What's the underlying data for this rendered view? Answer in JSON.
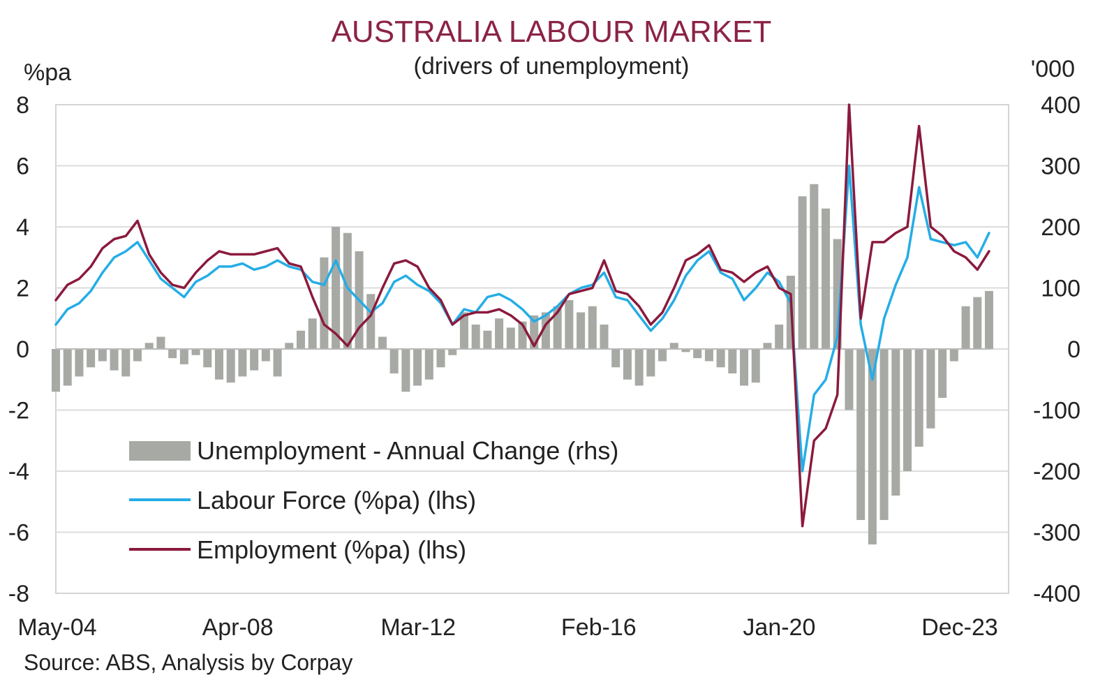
{
  "chart_data": {
    "type": "line",
    "title": "AUSTRALIA LABOUR MARKET",
    "subtitle": "(drivers of unemployment)",
    "y_left_label": "%pa",
    "y_right_label": "'000",
    "source": "Source: ABS, Analysis by Corpay",
    "y_left_range": [
      -8,
      8
    ],
    "y_right_range": [
      -400,
      400
    ],
    "y_left_ticks": [
      "8",
      "6",
      "4",
      "2",
      "0",
      "-2",
      "-4",
      "-6",
      "-8"
    ],
    "y_right_ticks": [
      "400",
      "300",
      "200",
      "100",
      "0",
      "-100",
      "-200",
      "-300",
      "-400"
    ],
    "x_ticks": [
      "May-04",
      "Apr-08",
      "Mar-12",
      "Feb-16",
      "Jan-20",
      "Dec-23"
    ],
    "grid": true,
    "legend_position": "bottom-left",
    "x_start": "2004-05",
    "x_end": "2024-05",
    "series": [
      {
        "name": "Unemployment - Annual Change (rhs)",
        "type": "bar",
        "axis": "right",
        "color": "#a7aaa4",
        "points": [
          [
            "2004-05",
            -70
          ],
          [
            "2004-08",
            -60
          ],
          [
            "2004-11",
            -45
          ],
          [
            "2005-02",
            -30
          ],
          [
            "2005-05",
            -20
          ],
          [
            "2005-08",
            -35
          ],
          [
            "2005-11",
            -45
          ],
          [
            "2006-02",
            -20
          ],
          [
            "2006-05",
            10
          ],
          [
            "2006-08",
            20
          ],
          [
            "2006-11",
            -15
          ],
          [
            "2007-02",
            -25
          ],
          [
            "2007-05",
            -10
          ],
          [
            "2007-08",
            -30
          ],
          [
            "2007-11",
            -50
          ],
          [
            "2008-02",
            -55
          ],
          [
            "2008-05",
            -45
          ],
          [
            "2008-08",
            -35
          ],
          [
            "2008-11",
            -20
          ],
          [
            "2009-02",
            -45
          ],
          [
            "2009-05",
            10
          ],
          [
            "2009-08",
            30
          ],
          [
            "2009-11",
            50
          ],
          [
            "2010-02",
            150
          ],
          [
            "2010-05",
            200
          ],
          [
            "2010-08",
            190
          ],
          [
            "2010-11",
            160
          ],
          [
            "2011-02",
            90
          ],
          [
            "2011-05",
            20
          ],
          [
            "2011-08",
            -40
          ],
          [
            "2011-11",
            -70
          ],
          [
            "2012-02",
            -60
          ],
          [
            "2012-05",
            -50
          ],
          [
            "2012-08",
            -30
          ],
          [
            "2012-11",
            -10
          ],
          [
            "2013-02",
            60
          ],
          [
            "2013-05",
            40
          ],
          [
            "2013-08",
            30
          ],
          [
            "2013-11",
            50
          ],
          [
            "2014-02",
            35
          ],
          [
            "2014-05",
            45
          ],
          [
            "2014-08",
            55
          ],
          [
            "2014-11",
            60
          ],
          [
            "2015-02",
            70
          ],
          [
            "2015-05",
            80
          ],
          [
            "2015-08",
            60
          ],
          [
            "2015-11",
            70
          ],
          [
            "2016-02",
            40
          ],
          [
            "2016-05",
            -30
          ],
          [
            "2016-08",
            -50
          ],
          [
            "2016-11",
            -60
          ],
          [
            "2017-02",
            -45
          ],
          [
            "2017-05",
            -20
          ],
          [
            "2017-08",
            10
          ],
          [
            "2017-11",
            -5
          ],
          [
            "2018-02",
            -15
          ],
          [
            "2018-05",
            -20
          ],
          [
            "2018-08",
            -30
          ],
          [
            "2018-11",
            -40
          ],
          [
            "2019-02",
            -60
          ],
          [
            "2019-05",
            -55
          ],
          [
            "2019-08",
            10
          ],
          [
            "2019-11",
            40
          ],
          [
            "2020-02",
            120
          ],
          [
            "2020-05",
            250
          ],
          [
            "2020-08",
            270
          ],
          [
            "2020-11",
            230
          ],
          [
            "2021-02",
            180
          ],
          [
            "2021-05",
            -100
          ],
          [
            "2021-08",
            -280
          ],
          [
            "2021-11",
            -320
          ],
          [
            "2022-02",
            -280
          ],
          [
            "2022-05",
            -240
          ],
          [
            "2022-08",
            -200
          ],
          [
            "2022-11",
            -160
          ],
          [
            "2023-02",
            -130
          ],
          [
            "2023-05",
            -80
          ],
          [
            "2023-08",
            -20
          ],
          [
            "2023-11",
            70
          ],
          [
            "2024-02",
            85
          ],
          [
            "2024-05",
            95
          ]
        ]
      },
      {
        "name": "Labour Force (%pa) (lhs)",
        "type": "line",
        "axis": "left",
        "color": "#25ade6",
        "points": [
          [
            "2004-05",
            0.8
          ],
          [
            "2004-08",
            1.3
          ],
          [
            "2004-11",
            1.5
          ],
          [
            "2005-02",
            1.9
          ],
          [
            "2005-05",
            2.5
          ],
          [
            "2005-08",
            3.0
          ],
          [
            "2005-11",
            3.2
          ],
          [
            "2006-02",
            3.5
          ],
          [
            "2006-05",
            2.9
          ],
          [
            "2006-08",
            2.3
          ],
          [
            "2006-11",
            2.0
          ],
          [
            "2007-02",
            1.7
          ],
          [
            "2007-05",
            2.2
          ],
          [
            "2007-08",
            2.4
          ],
          [
            "2007-11",
            2.7
          ],
          [
            "2008-02",
            2.7
          ],
          [
            "2008-05",
            2.8
          ],
          [
            "2008-08",
            2.6
          ],
          [
            "2008-11",
            2.7
          ],
          [
            "2009-02",
            2.9
          ],
          [
            "2009-05",
            2.7
          ],
          [
            "2009-08",
            2.6
          ],
          [
            "2009-11",
            2.2
          ],
          [
            "2010-02",
            2.1
          ],
          [
            "2010-05",
            2.9
          ],
          [
            "2010-08",
            2.0
          ],
          [
            "2010-11",
            1.6
          ],
          [
            "2011-02",
            1.2
          ],
          [
            "2011-05",
            1.5
          ],
          [
            "2011-08",
            2.2
          ],
          [
            "2011-11",
            2.4
          ],
          [
            "2012-02",
            2.1
          ],
          [
            "2012-05",
            1.9
          ],
          [
            "2012-08",
            1.5
          ],
          [
            "2012-11",
            0.8
          ],
          [
            "2013-02",
            1.3
          ],
          [
            "2013-05",
            1.2
          ],
          [
            "2013-08",
            1.7
          ],
          [
            "2013-11",
            1.8
          ],
          [
            "2014-02",
            1.6
          ],
          [
            "2014-05",
            1.3
          ],
          [
            "2014-08",
            0.9
          ],
          [
            "2014-11",
            1.1
          ],
          [
            "2015-02",
            1.4
          ],
          [
            "2015-05",
            1.8
          ],
          [
            "2015-08",
            2.0
          ],
          [
            "2015-11",
            2.1
          ],
          [
            "2016-02",
            2.5
          ],
          [
            "2016-05",
            1.7
          ],
          [
            "2016-08",
            1.6
          ],
          [
            "2016-11",
            1.1
          ],
          [
            "2017-02",
            0.6
          ],
          [
            "2017-05",
            1.0
          ],
          [
            "2017-08",
            1.6
          ],
          [
            "2017-11",
            2.4
          ],
          [
            "2018-02",
            2.9
          ],
          [
            "2018-05",
            3.2
          ],
          [
            "2018-08",
            2.5
          ],
          [
            "2018-11",
            2.3
          ],
          [
            "2019-02",
            1.6
          ],
          [
            "2019-05",
            2.0
          ],
          [
            "2019-08",
            2.5
          ],
          [
            "2019-11",
            2.2
          ],
          [
            "2020-02",
            1.5
          ],
          [
            "2020-05",
            -4.0
          ],
          [
            "2020-08",
            -1.5
          ],
          [
            "2020-11",
            -1.0
          ],
          [
            "2021-02",
            0.4
          ],
          [
            "2021-05",
            6.0
          ],
          [
            "2021-08",
            0.8
          ],
          [
            "2021-11",
            -1.0
          ],
          [
            "2022-02",
            1.0
          ],
          [
            "2022-05",
            2.1
          ],
          [
            "2022-08",
            3.0
          ],
          [
            "2022-11",
            5.3
          ],
          [
            "2023-02",
            3.6
          ],
          [
            "2023-05",
            3.5
          ],
          [
            "2023-08",
            3.4
          ],
          [
            "2023-11",
            3.5
          ],
          [
            "2024-02",
            3.0
          ],
          [
            "2024-05",
            3.8
          ]
        ]
      },
      {
        "name": "Employment (%pa) (lhs)",
        "type": "line",
        "axis": "left",
        "color": "#8b1a3d",
        "points": [
          [
            "2004-05",
            1.6
          ],
          [
            "2004-08",
            2.1
          ],
          [
            "2004-11",
            2.3
          ],
          [
            "2005-02",
            2.7
          ],
          [
            "2005-05",
            3.3
          ],
          [
            "2005-08",
            3.6
          ],
          [
            "2005-11",
            3.7
          ],
          [
            "2006-02",
            4.2
          ],
          [
            "2006-05",
            3.1
          ],
          [
            "2006-08",
            2.5
          ],
          [
            "2006-11",
            2.1
          ],
          [
            "2007-02",
            2.0
          ],
          [
            "2007-05",
            2.5
          ],
          [
            "2007-08",
            2.9
          ],
          [
            "2007-11",
            3.2
          ],
          [
            "2008-02",
            3.1
          ],
          [
            "2008-05",
            3.1
          ],
          [
            "2008-08",
            3.1
          ],
          [
            "2008-11",
            3.2
          ],
          [
            "2009-02",
            3.3
          ],
          [
            "2009-05",
            2.8
          ],
          [
            "2009-08",
            2.7
          ],
          [
            "2009-11",
            1.7
          ],
          [
            "2010-02",
            0.8
          ],
          [
            "2010-05",
            0.5
          ],
          [
            "2010-08",
            0.1
          ],
          [
            "2010-11",
            0.7
          ],
          [
            "2011-02",
            1.1
          ],
          [
            "2011-05",
            2.0
          ],
          [
            "2011-08",
            2.8
          ],
          [
            "2011-11",
            2.9
          ],
          [
            "2012-02",
            2.7
          ],
          [
            "2012-05",
            2.0
          ],
          [
            "2012-08",
            1.6
          ],
          [
            "2012-11",
            0.8
          ],
          [
            "2013-02",
            1.1
          ],
          [
            "2013-05",
            1.2
          ],
          [
            "2013-08",
            1.2
          ],
          [
            "2013-11",
            1.3
          ],
          [
            "2014-02",
            1.1
          ],
          [
            "2014-05",
            0.8
          ],
          [
            "2014-08",
            0.1
          ],
          [
            "2014-11",
            0.8
          ],
          [
            "2015-02",
            1.2
          ],
          [
            "2015-05",
            1.8
          ],
          [
            "2015-08",
            1.9
          ],
          [
            "2015-11",
            2.0
          ],
          [
            "2016-02",
            2.9
          ],
          [
            "2016-05",
            1.9
          ],
          [
            "2016-08",
            1.8
          ],
          [
            "2016-11",
            1.4
          ],
          [
            "2017-02",
            0.8
          ],
          [
            "2017-05",
            1.2
          ],
          [
            "2017-08",
            2.0
          ],
          [
            "2017-11",
            2.9
          ],
          [
            "2018-02",
            3.1
          ],
          [
            "2018-05",
            3.4
          ],
          [
            "2018-08",
            2.6
          ],
          [
            "2018-11",
            2.5
          ],
          [
            "2019-02",
            2.2
          ],
          [
            "2019-05",
            2.5
          ],
          [
            "2019-08",
            2.7
          ],
          [
            "2019-11",
            2.0
          ],
          [
            "2020-02",
            1.8
          ],
          [
            "2020-05",
            -5.8
          ],
          [
            "2020-08",
            -3.0
          ],
          [
            "2020-11",
            -2.6
          ],
          [
            "2021-02",
            -1.5
          ],
          [
            "2021-05",
            8.0
          ],
          [
            "2021-08",
            1.0
          ],
          [
            "2021-11",
            3.5
          ],
          [
            "2022-02",
            3.5
          ],
          [
            "2022-05",
            3.8
          ],
          [
            "2022-08",
            4.0
          ],
          [
            "2022-11",
            7.3
          ],
          [
            "2023-02",
            4.0
          ],
          [
            "2023-05",
            3.7
          ],
          [
            "2023-08",
            3.2
          ],
          [
            "2023-11",
            3.0
          ],
          [
            "2024-02",
            2.6
          ],
          [
            "2024-05",
            3.2
          ]
        ]
      }
    ]
  }
}
